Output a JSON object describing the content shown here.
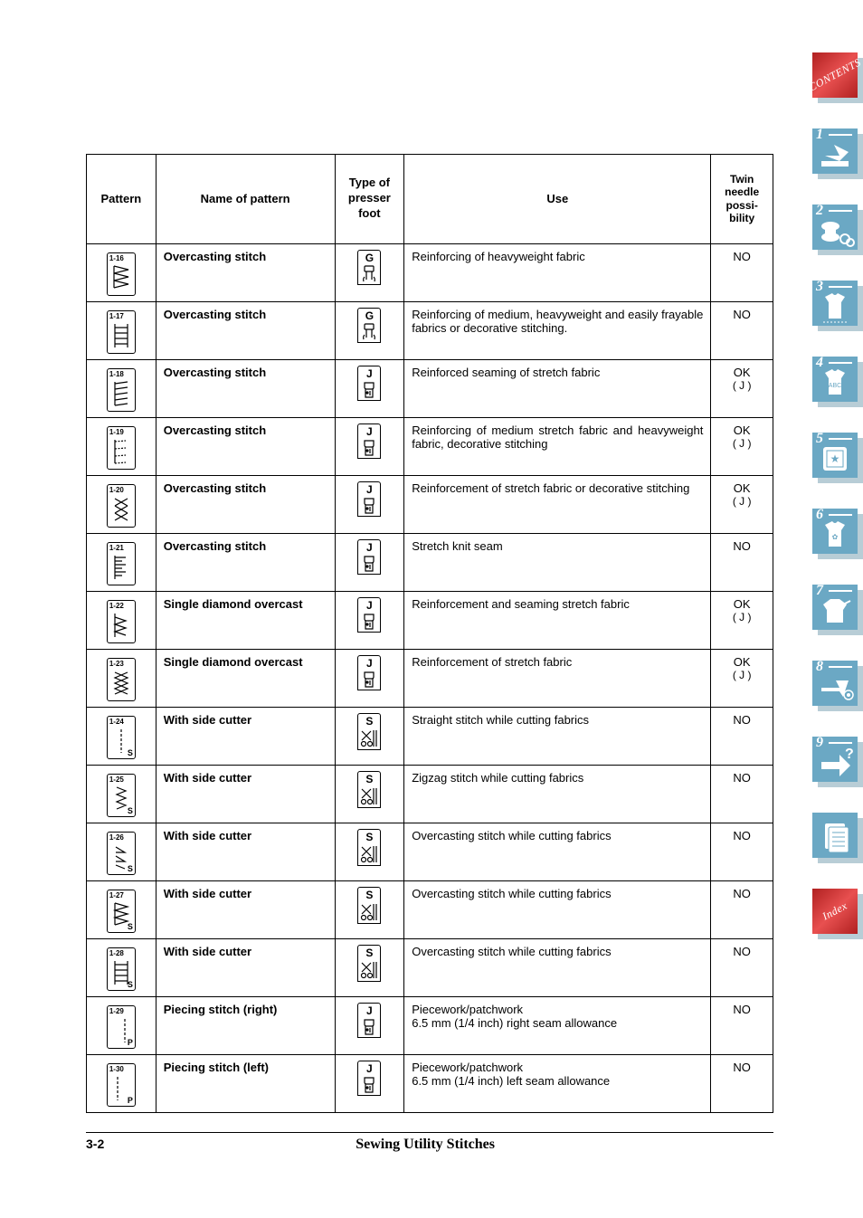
{
  "footer": {
    "page": "3-2",
    "title": "Sewing Utility Stitches"
  },
  "headers": {
    "pattern": "Pattern",
    "name": "Name of pattern",
    "foot": "Type of presser foot",
    "use": "Use",
    "twin": "Twin needle possi-bility"
  },
  "side_tabs": {
    "contents": "CONTENTS",
    "index": "Index",
    "nums": [
      "1",
      "2",
      "3",
      "4",
      "5",
      "6",
      "7",
      "8",
      "9"
    ]
  },
  "rows": [
    {
      "num": "1-16",
      "name": "Overcasting stitch",
      "foot": "G",
      "foot_style": "g",
      "use": "Reinforcing of heavyweight fabric",
      "twin": "NO",
      "twin_sub": "",
      "glyph": "zz-box"
    },
    {
      "num": "1-17",
      "name": "Overcasting stitch",
      "foot": "G",
      "foot_style": "g",
      "use": "Reinforcing of medium, heavyweight and easily frayable fabrics or decorative stitching.",
      "twin": "NO",
      "twin_sub": "",
      "glyph": "ladder"
    },
    {
      "num": "1-18",
      "name": "Overcasting stitch",
      "foot": "J",
      "foot_style": "j",
      "use": "Reinforced seaming of stretch fabric",
      "twin": "OK",
      "twin_sub": "( J )",
      "glyph": "slant4"
    },
    {
      "num": "1-19",
      "name": "Overcasting stitch",
      "foot": "J",
      "foot_style": "j",
      "use": "Reinforcing of medium stretch fabric and heavyweight fabric, decorative stitching",
      "twin": "OK",
      "twin_sub": "( J )",
      "glyph": "slant-dot"
    },
    {
      "num": "1-20",
      "name": "Overcasting stitch",
      "foot": "J",
      "foot_style": "j",
      "use": "Reinforcement of stretch fabric or decorative stitching",
      "twin": "OK",
      "twin_sub": "( J )",
      "glyph": "cross3"
    },
    {
      "num": "1-21",
      "name": "Overcasting stitch",
      "foot": "J",
      "foot_style": "j",
      "use": "Stretch knit seam",
      "twin": "NO",
      "twin_sub": "",
      "glyph": "comb"
    },
    {
      "num": "1-22",
      "name": "Single diamond overcast",
      "foot": "J",
      "foot_style": "j",
      "use": "Reinforcement and seaming stretch fabric",
      "twin": "OK",
      "twin_sub": "( J )",
      "glyph": "diamond1"
    },
    {
      "num": "1-23",
      "name": "Single diamond overcast",
      "foot": "J",
      "foot_style": "j",
      "use": "Reinforcement of stretch fabric",
      "twin": "OK",
      "twin_sub": "( J )",
      "glyph": "diamond2"
    },
    {
      "num": "1-24",
      "name": "With side cutter",
      "foot": "S",
      "foot_style": "s",
      "use": "Straight stitch while cutting fabrics",
      "twin": "NO",
      "twin_sub": "",
      "glyph": "dash-s",
      "s": true
    },
    {
      "num": "1-25",
      "name": "With side cutter",
      "foot": "S",
      "foot_style": "s",
      "use": "Zigzag stitch while cutting fabrics",
      "twin": "NO",
      "twin_sub": "",
      "glyph": "zz-s",
      "s": true
    },
    {
      "num": "1-26",
      "name": "With side cutter",
      "foot": "S",
      "foot_style": "s",
      "use": "Overcasting stitch while cutting fabrics",
      "twin": "NO",
      "twin_sub": "",
      "glyph": "v-s",
      "s": true
    },
    {
      "num": "1-27",
      "name": "With side cutter",
      "foot": "S",
      "foot_style": "s",
      "use": "Overcasting stitch while cutting fabrics",
      "twin": "NO",
      "twin_sub": "",
      "glyph": "zz-box-s",
      "s": true
    },
    {
      "num": "1-28",
      "name": "With side cutter",
      "foot": "S",
      "foot_style": "s",
      "use": "Overcasting stitch while cutting fabrics",
      "twin": "NO",
      "twin_sub": "",
      "glyph": "ladder-s",
      "s": true
    },
    {
      "num": "1-29",
      "name": "Piecing stitch (right)",
      "foot": "J",
      "foot_style": "j",
      "use": "Piecework/patchwork\n6.5 mm (1/4 inch) right seam allowance",
      "twin": "NO",
      "twin_sub": "",
      "glyph": "dash-p-r",
      "p": true
    },
    {
      "num": "1-30",
      "name": "Piecing stitch (left)",
      "foot": "J",
      "foot_style": "j",
      "use": "Piecework/patchwork\n6.5 mm (1/4 inch) left seam allowance",
      "twin": "NO",
      "twin_sub": "",
      "glyph": "dash-p-l",
      "p": true
    }
  ]
}
